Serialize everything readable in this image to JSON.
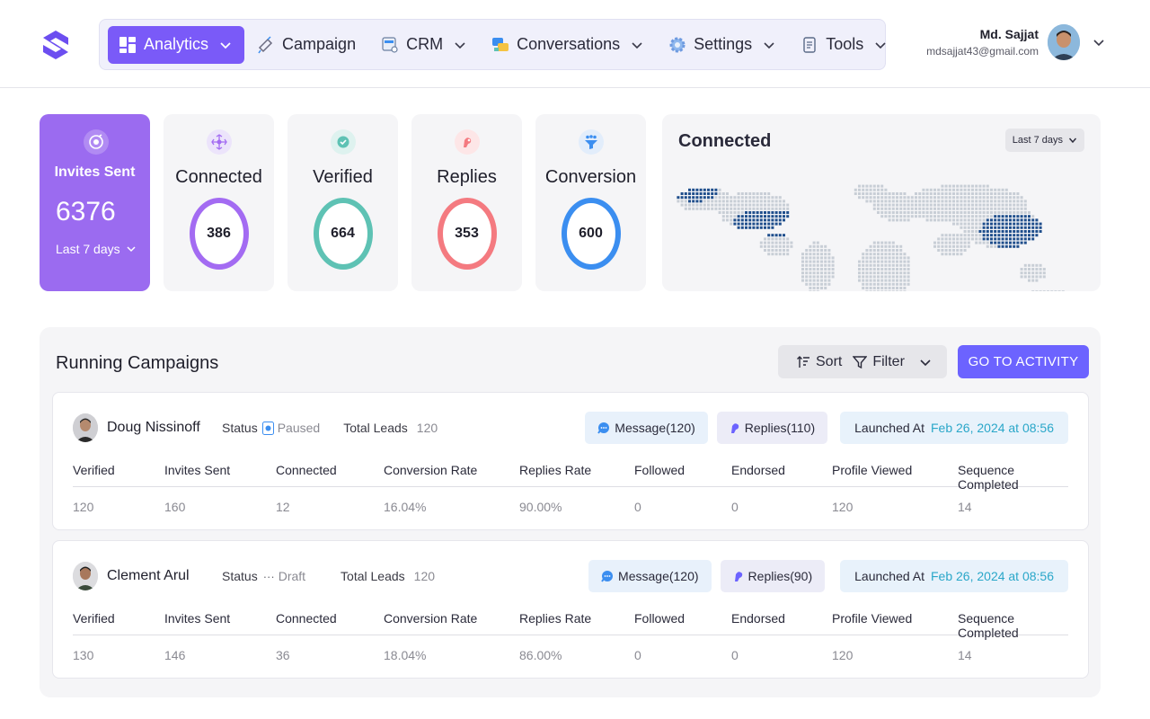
{
  "nav": {
    "items": [
      {
        "label": "Analytics",
        "icon": "analytics-icon",
        "active": true
      },
      {
        "label": "Campaign",
        "icon": "campaign-icon"
      },
      {
        "label": "CRM",
        "icon": "crm-icon"
      },
      {
        "label": "Conversations",
        "icon": "conversations-icon"
      },
      {
        "label": "Settings",
        "icon": "settings-icon"
      },
      {
        "label": "Tools",
        "icon": "tools-icon"
      }
    ]
  },
  "user": {
    "name": "Md. Sajjat",
    "email": "mdsajjat43@gmail.com"
  },
  "stats": {
    "invites": {
      "title": "Invites Sent",
      "value": "6376",
      "period": "Last 7 days"
    },
    "connected": {
      "title": "Connected",
      "value": "386",
      "color": "#a36bf2"
    },
    "verified": {
      "title": "Verified",
      "value": "664",
      "color": "#5ec2b4"
    },
    "replies": {
      "title": "Replies",
      "value": "353",
      "color": "#f47a80"
    },
    "conversion": {
      "title": "Conversion",
      "value": "600",
      "color": "#3b8ef0"
    }
  },
  "map": {
    "title": "Connected",
    "period": "Last 7 days"
  },
  "campaigns": {
    "title": "Running Campaigns",
    "sort_label": "Sort",
    "filter_label": "Filter",
    "activity_label": "GO TO ACTIVITY",
    "status_label": "Status",
    "leads_label": "Total Leads",
    "launched_label": "Launched At",
    "columns": [
      "Verified",
      "Invites Sent",
      "Connected",
      "Conversion Rate",
      "Replies Rate",
      "Followed",
      "Endorsed",
      "Profile Viewed",
      "Sequence Completed"
    ],
    "items": [
      {
        "name": "Doug Nissinoff",
        "status": "Paused",
        "total_leads": "120",
        "message": "Message(120)",
        "replies": "Replies(110)",
        "launched": "Feb 26, 2024 at 08:56",
        "values": [
          "120",
          "160",
          "12",
          "16.04%",
          "90.00%",
          "0",
          "0",
          "120",
          "14"
        ]
      },
      {
        "name": "Clement Arul",
        "status": "Draft",
        "total_leads": "120",
        "message": "Message(120)",
        "replies": "Replies(90)",
        "launched": "Feb 26, 2024 at 08:56",
        "values": [
          "130",
          "146",
          "36",
          "18.04%",
          "86.00%",
          "0",
          "0",
          "120",
          "14"
        ]
      }
    ]
  },
  "colors": {
    "accent": "#7a5af8",
    "button": "#6c63ff",
    "invites_bg": "#9b6bf0",
    "map_dot": "#c8ced6",
    "map_highlight": "#1f4e8c"
  }
}
